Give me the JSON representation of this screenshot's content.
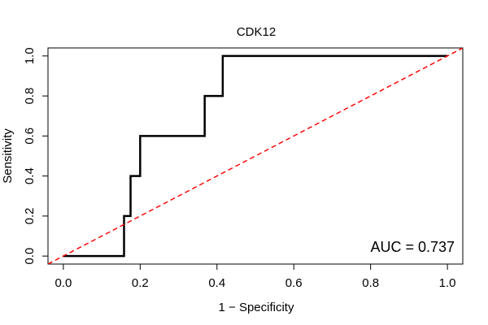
{
  "chart_data": {
    "type": "line",
    "title": "CDK12",
    "xlabel": "1 − Specificity",
    "ylabel": "Sensitivity",
    "xlim": [
      -0.04,
      1.04
    ],
    "ylim": [
      -0.04,
      1.04
    ],
    "x_ticks": [
      0.0,
      0.2,
      0.4,
      0.6,
      0.8,
      1.0
    ],
    "y_ticks": [
      0.0,
      0.2,
      0.4,
      0.6,
      0.8,
      1.0
    ],
    "x_tick_labels": [
      "0.0",
      "0.2",
      "0.4",
      "0.6",
      "0.8",
      "1.0"
    ],
    "y_tick_labels": [
      "0.0",
      "0.2",
      "0.4",
      "0.6",
      "0.8",
      "1.0"
    ],
    "grid": false,
    "series": [
      {
        "style": "step",
        "color": "#000000",
        "x": [
          0.0,
          0.158,
          0.158,
          0.175,
          0.175,
          0.2,
          0.2,
          0.368,
          0.368,
          0.415,
          0.415,
          1.0
        ],
        "y": [
          0.0,
          0.0,
          0.2,
          0.2,
          0.4,
          0.4,
          0.6,
          0.6,
          0.8,
          0.8,
          1.0,
          1.0
        ]
      },
      {
        "style": "dashed",
        "color": "#ff0000",
        "x": [
          -0.04,
          1.04
        ],
        "y": [
          -0.04,
          1.04
        ]
      }
    ],
    "annotations": [
      {
        "text": "AUC = 0.737",
        "placement": "bottom-right"
      }
    ]
  }
}
